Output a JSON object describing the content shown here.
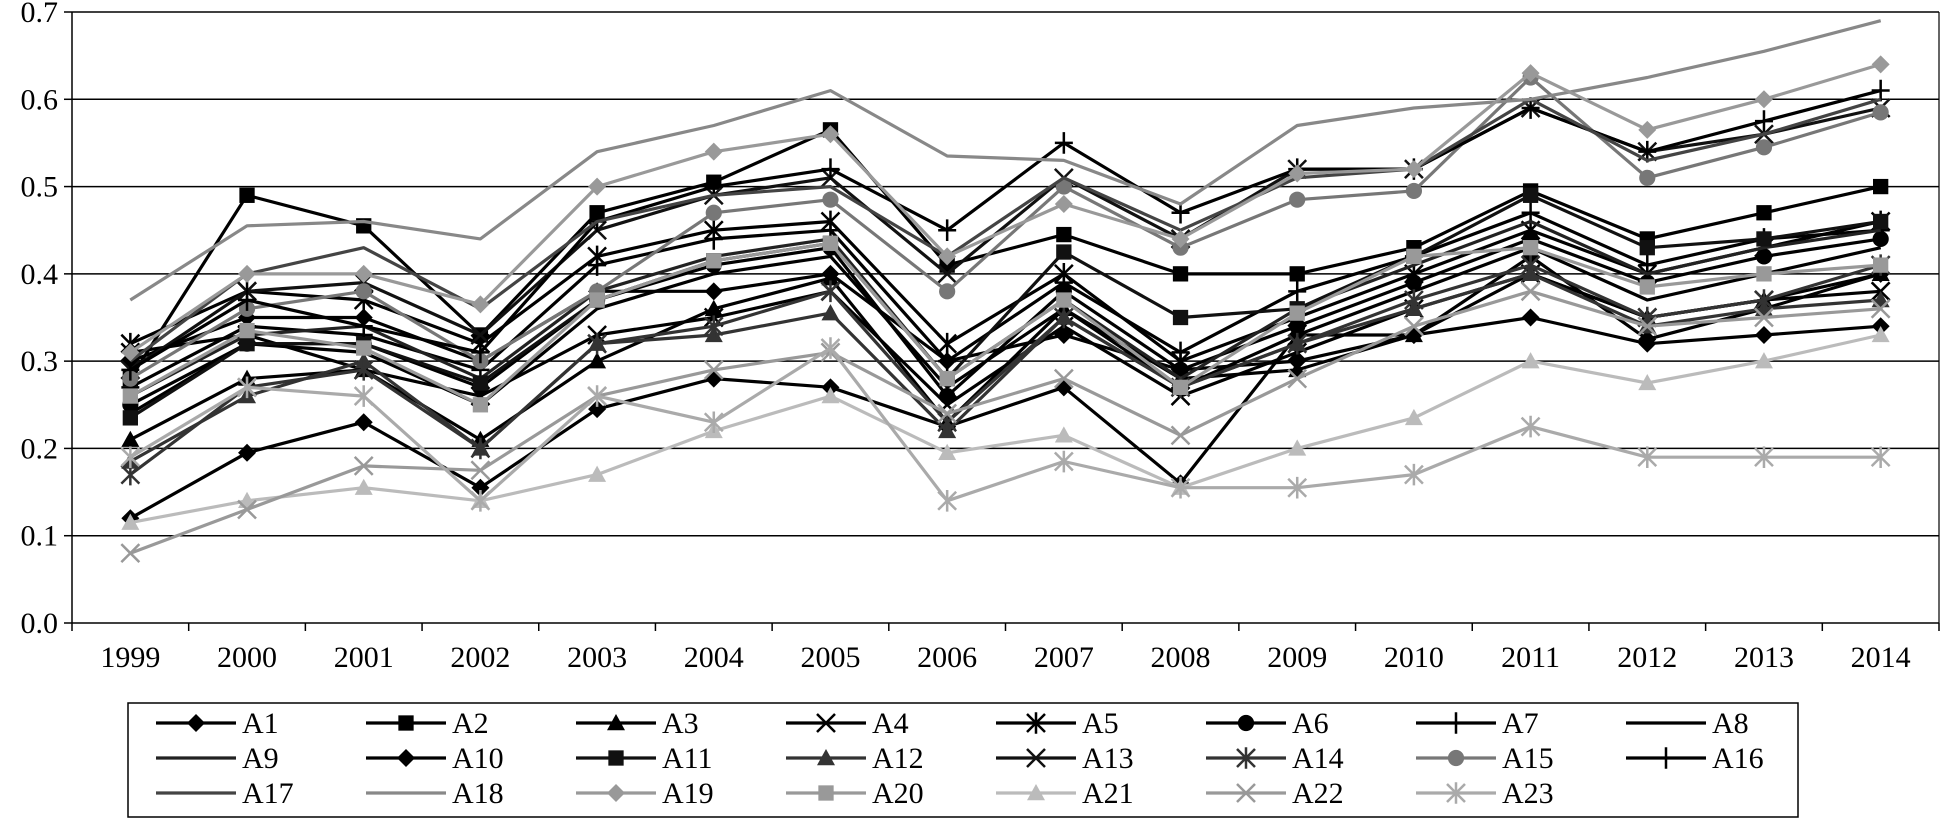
{
  "chart_data": {
    "type": "line",
    "title": "",
    "xlabel": "",
    "ylabel": "",
    "categories": [
      "1999",
      "2000",
      "2001",
      "2002",
      "2003",
      "2004",
      "2005",
      "2006",
      "2007",
      "2008",
      "2009",
      "2010",
      "2011",
      "2012",
      "2013",
      "2014"
    ],
    "ylim": [
      0.0,
      0.7
    ],
    "yticks": [
      "0.0",
      "0.1",
      "0.2",
      "0.3",
      "0.4",
      "0.5",
      "0.6",
      "0.7"
    ],
    "grid": "horizontal",
    "legend_position": "bottom",
    "series": [
      {
        "name": "A1",
        "marker": "diamond",
        "color": "#000000",
        "values": [
          0.3,
          0.35,
          0.35,
          0.3,
          0.38,
          0.38,
          0.4,
          0.3,
          0.33,
          0.29,
          0.3,
          0.33,
          0.35,
          0.32,
          0.33,
          0.34
        ]
      },
      {
        "name": "A2",
        "marker": "square",
        "color": "#000000",
        "values": [
          0.28,
          0.49,
          0.455,
          0.33,
          0.47,
          0.505,
          0.565,
          0.41,
          0.445,
          0.4,
          0.4,
          0.43,
          0.495,
          0.44,
          0.47,
          0.5
        ]
      },
      {
        "name": "A3",
        "marker": "triangle",
        "color": "#000000",
        "values": [
          0.21,
          0.28,
          0.29,
          0.21,
          0.3,
          0.36,
          0.395,
          0.23,
          0.36,
          0.28,
          0.29,
          0.33,
          0.4,
          0.35,
          0.37,
          0.4
        ]
      },
      {
        "name": "A4",
        "marker": "x",
        "color": "#000000",
        "values": [
          0.31,
          0.33,
          0.29,
          0.26,
          0.33,
          0.35,
          0.38,
          0.25,
          0.34,
          0.26,
          0.31,
          0.36,
          0.4,
          0.35,
          0.37,
          0.38
        ]
      },
      {
        "name": "A5",
        "marker": "star",
        "color": "#000000",
        "values": [
          0.32,
          0.38,
          0.37,
          0.32,
          0.42,
          0.45,
          0.46,
          0.32,
          0.4,
          0.3,
          0.35,
          0.4,
          0.45,
          0.4,
          0.43,
          0.46
        ]
      },
      {
        "name": "A6",
        "marker": "circle",
        "color": "#000000",
        "values": [
          0.25,
          0.32,
          0.32,
          0.27,
          0.37,
          0.41,
          0.43,
          0.26,
          0.38,
          0.29,
          0.34,
          0.39,
          0.44,
          0.39,
          0.42,
          0.44
        ]
      },
      {
        "name": "A7",
        "marker": "plus",
        "color": "#000000",
        "values": [
          0.27,
          0.34,
          0.33,
          0.29,
          0.41,
          0.44,
          0.45,
          0.3,
          0.39,
          0.31,
          0.38,
          0.42,
          0.47,
          0.41,
          0.44,
          0.45
        ]
      },
      {
        "name": "A8",
        "marker": "none",
        "color": "#000000",
        "values": [
          0.24,
          0.32,
          0.31,
          0.25,
          0.36,
          0.4,
          0.42,
          0.27,
          0.36,
          0.27,
          0.33,
          0.38,
          0.43,
          0.37,
          0.4,
          0.43
        ]
      },
      {
        "name": "A9",
        "marker": "none",
        "color": "#222222",
        "values": [
          0.26,
          0.33,
          0.34,
          0.28,
          0.38,
          0.42,
          0.44,
          0.28,
          0.37,
          0.28,
          0.36,
          0.41,
          0.46,
          0.4,
          0.43,
          0.45
        ]
      },
      {
        "name": "A10",
        "marker": "diamond",
        "color": "#000000",
        "values": [
          0.12,
          0.195,
          0.23,
          0.155,
          0.245,
          0.28,
          0.27,
          0.225,
          0.27,
          0.16,
          0.33,
          0.33,
          0.42,
          0.325,
          0.36,
          0.4
        ]
      },
      {
        "name": "A11",
        "marker": "square",
        "color": "#111111",
        "values": [
          0.235,
          0.32,
          0.32,
          0.275,
          0.37,
          0.415,
          0.435,
          0.28,
          0.425,
          0.35,
          0.36,
          0.42,
          0.49,
          0.43,
          0.44,
          0.46
        ]
      },
      {
        "name": "A12",
        "marker": "triangle",
        "color": "#333333",
        "values": [
          0.185,
          0.26,
          0.3,
          0.2,
          0.32,
          0.33,
          0.355,
          0.22,
          0.35,
          0.27,
          0.32,
          0.36,
          0.4,
          0.34,
          0.36,
          0.37
        ]
      },
      {
        "name": "A13",
        "marker": "x",
        "color": "#111111",
        "values": [
          0.29,
          0.38,
          0.39,
          0.33,
          0.45,
          0.49,
          0.51,
          0.4,
          0.51,
          0.44,
          0.52,
          0.52,
          0.59,
          0.54,
          0.56,
          0.59
        ]
      },
      {
        "name": "A14",
        "marker": "star",
        "color": "#333333",
        "values": [
          0.17,
          0.27,
          0.29,
          0.2,
          0.32,
          0.34,
          0.38,
          0.23,
          0.35,
          0.27,
          0.32,
          0.37,
          0.41,
          0.35,
          0.37,
          0.41
        ]
      },
      {
        "name": "A15",
        "marker": "circle",
        "color": "#777777",
        "values": [
          0.28,
          0.36,
          0.38,
          0.3,
          0.38,
          0.47,
          0.485,
          0.38,
          0.5,
          0.43,
          0.485,
          0.495,
          0.625,
          0.51,
          0.545,
          0.585
        ]
      },
      {
        "name": "A16",
        "marker": "plus",
        "color": "#000000",
        "values": [
          0.29,
          0.37,
          0.34,
          0.31,
          0.46,
          0.5,
          0.52,
          0.45,
          0.55,
          0.47,
          0.52,
          0.52,
          0.59,
          0.54,
          0.575,
          0.61
        ]
      },
      {
        "name": "A17",
        "marker": "none",
        "color": "#444444",
        "values": [
          0.3,
          0.4,
          0.43,
          0.36,
          0.46,
          0.49,
          0.5,
          0.42,
          0.51,
          0.45,
          0.51,
          0.52,
          0.6,
          0.53,
          0.56,
          0.6
        ]
      },
      {
        "name": "A18",
        "marker": "none",
        "color": "#888888",
        "values": [
          0.37,
          0.455,
          0.46,
          0.44,
          0.54,
          0.57,
          0.61,
          0.535,
          0.53,
          0.48,
          0.57,
          0.59,
          0.6,
          0.625,
          0.655,
          0.69
        ]
      },
      {
        "name": "A19",
        "marker": "diamond",
        "color": "#999999",
        "values": [
          0.31,
          0.4,
          0.4,
          0.365,
          0.5,
          0.54,
          0.56,
          0.42,
          0.48,
          0.44,
          0.515,
          0.52,
          0.63,
          0.565,
          0.6,
          0.64
        ]
      },
      {
        "name": "A20",
        "marker": "square",
        "color": "#999999",
        "values": [
          0.26,
          0.335,
          0.315,
          0.25,
          0.37,
          0.415,
          0.435,
          0.28,
          0.37,
          0.27,
          0.355,
          0.42,
          0.43,
          0.385,
          0.4,
          0.41
        ]
      },
      {
        "name": "A21",
        "marker": "triangle",
        "color": "#bbbbbb",
        "values": [
          0.115,
          0.14,
          0.155,
          0.14,
          0.17,
          0.22,
          0.26,
          0.195,
          0.215,
          0.155,
          0.2,
          0.235,
          0.3,
          0.275,
          0.3,
          0.33
        ]
      },
      {
        "name": "A22",
        "marker": "x",
        "color": "#999999",
        "values": [
          0.08,
          0.13,
          0.18,
          0.175,
          0.26,
          0.29,
          0.31,
          0.24,
          0.28,
          0.215,
          0.28,
          0.34,
          0.38,
          0.34,
          0.35,
          0.36
        ]
      },
      {
        "name": "A23",
        "marker": "star",
        "color": "#aaaaaa",
        "values": [
          0.19,
          0.27,
          0.26,
          0.14,
          0.26,
          0.23,
          0.315,
          0.14,
          0.185,
          0.155,
          0.155,
          0.17,
          0.225,
          0.19,
          0.19,
          0.19
        ]
      }
    ]
  }
}
